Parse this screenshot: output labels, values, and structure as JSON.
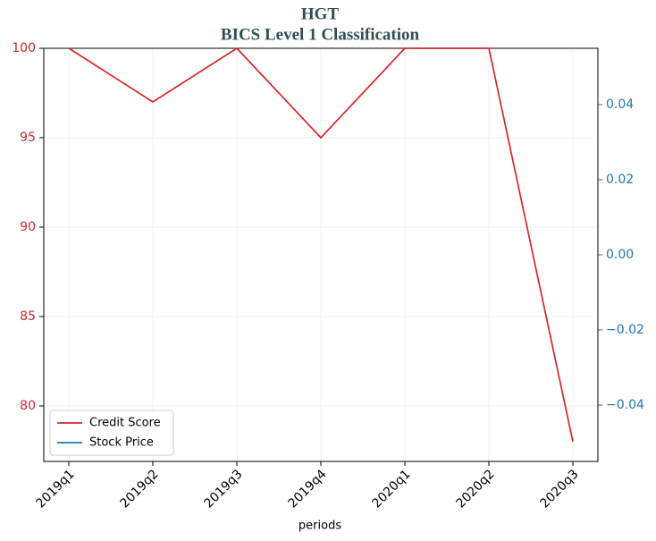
{
  "chart_data": {
    "type": "line",
    "title": "HGT",
    "subtitle": "BICS Level 1 Classification",
    "xlabel": "periods",
    "categories": [
      "2019q1",
      "2019q2",
      "2019q3",
      "2019q4",
      "2020q1",
      "2020q2",
      "2020q3"
    ],
    "series": [
      {
        "name": "Credit Score",
        "color": "#d62728",
        "values": [
          100,
          97,
          100,
          95,
          100,
          100,
          78
        ]
      },
      {
        "name": "Stock Price",
        "color": "#1f77b4",
        "axis": "y2",
        "values": [
          null,
          null,
          null,
          null,
          null,
          null,
          null
        ]
      }
    ],
    "ylim": [
      76.9,
      100
    ],
    "yticks": [
      80,
      85,
      90,
      95,
      100
    ],
    "ycolor": "#d62728",
    "y2lim": [
      -0.055,
      0.055
    ],
    "y2ticks": [
      {
        "value": -0.04,
        "label": "−0.04"
      },
      {
        "value": -0.02,
        "label": "−0.02"
      },
      {
        "value": 0,
        "label": "0.00"
      },
      0.02,
      0.04
    ],
    "y2color": "#1f77b4",
    "grid": true,
    "legend": "lower left"
  }
}
